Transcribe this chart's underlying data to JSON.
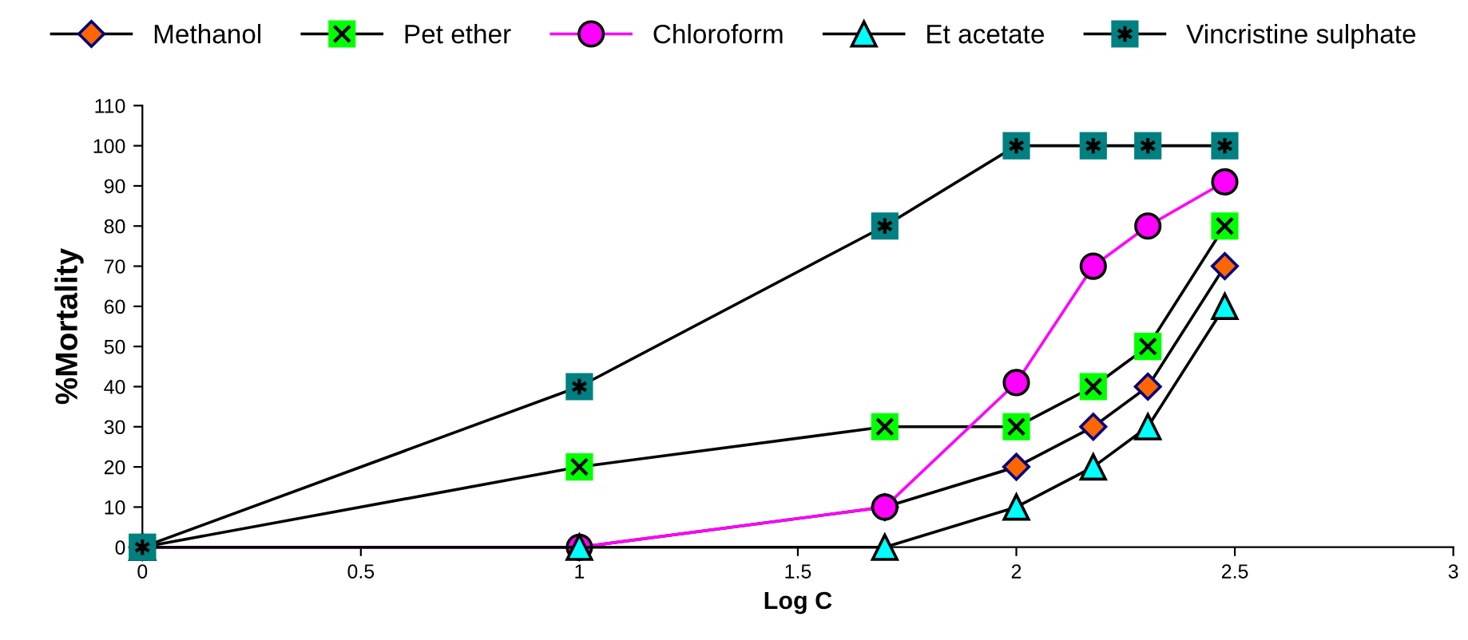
{
  "chart_data": {
    "type": "line",
    "xlabel": "Log C",
    "ylabel": "%Mortality",
    "x": [
      0,
      1,
      1.699,
      2,
      2.176,
      2.301,
      2.477
    ],
    "xlim": [
      0,
      3
    ],
    "xticks": [
      0,
      0.5,
      1,
      1.5,
      2,
      2.5,
      3
    ],
    "ylim": [
      0,
      110
    ],
    "yticks": [
      0,
      10,
      20,
      30,
      40,
      50,
      60,
      70,
      80,
      90,
      100,
      110
    ],
    "grid": false,
    "legend": "top",
    "series": [
      {
        "name": "Methanol",
        "color": "#ff6600",
        "marker": "diamond",
        "values": [
          0,
          0,
          10,
          20,
          30,
          40,
          70
        ]
      },
      {
        "name": "Pet ether",
        "color": "#00ff00",
        "marker": "square",
        "values": [
          0,
          20,
          30,
          30,
          40,
          50,
          80
        ]
      },
      {
        "name": "Chloroform",
        "color": "#ff00ff",
        "marker": "circle",
        "values": [
          0,
          0,
          10,
          41,
          70,
          80,
          91
        ]
      },
      {
        "name": "Et acetate",
        "color": "#00ffff",
        "marker": "triangle",
        "values": [
          0,
          0,
          0,
          10,
          20,
          30,
          60
        ]
      },
      {
        "name": "Vincristine sulphate",
        "color": "#008080",
        "marker": "square",
        "values": [
          0,
          40,
          80,
          100,
          100,
          100,
          100
        ]
      }
    ]
  }
}
